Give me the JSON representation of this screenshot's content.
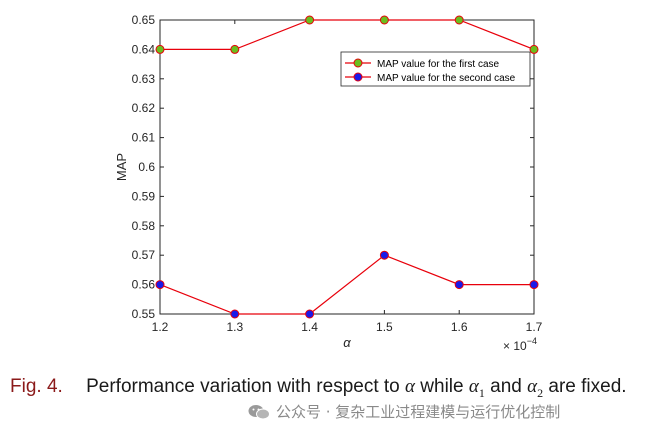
{
  "chart_data": {
    "type": "line",
    "x": [
      1.2,
      1.3,
      1.4,
      1.5,
      1.6,
      1.7
    ],
    "xlim": [
      1.2,
      1.7
    ],
    "ylim": [
      0.55,
      0.65
    ],
    "xticks": [
      "1.2",
      "1.3",
      "1.4",
      "1.5",
      "1.6",
      "1.7"
    ],
    "yticks": [
      "0.55",
      "0.56",
      "0.57",
      "0.58",
      "0.59",
      "0.6",
      "0.61",
      "0.62",
      "0.63",
      "0.64",
      "0.65"
    ],
    "xlabel": "α",
    "x_exponent_base": "× 10",
    "x_exponent_power": "−4",
    "ylabel": "MAP",
    "grid": false,
    "legend_position": "top-right",
    "line_color": "#e8000b",
    "series": [
      {
        "name": "MAP value for the first case",
        "values": [
          0.64,
          0.64,
          0.65,
          0.65,
          0.65,
          0.64
        ],
        "marker_color": "#6abe1f"
      },
      {
        "name": "MAP value for the second case",
        "values": [
          0.56,
          0.55,
          0.55,
          0.57,
          0.56,
          0.56
        ],
        "marker_color": "#1a1ae8"
      }
    ]
  },
  "caption": {
    "fig_label": "Fig. 4.",
    "part1": "Performance variation with respect to",
    "alpha": "α",
    "part2": "while",
    "alpha1_base": "α",
    "alpha1_sub": "1",
    "part3": "and",
    "alpha2_base": "α",
    "alpha2_sub": "2",
    "part4": "are fixed."
  },
  "watermark": {
    "text": "公众号 · 复杂工业过程建模与运行优化控制",
    "icon": "wechat-icon"
  }
}
